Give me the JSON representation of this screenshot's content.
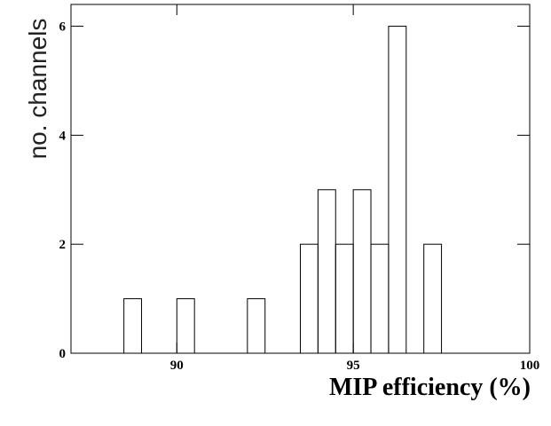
{
  "chart_data": {
    "type": "histogram",
    "x_label": "MIP efficiency (%)",
    "y_label": "no. channels",
    "bins": [
      87,
      87.5,
      88,
      88.5,
      89,
      89.5,
      90,
      90.5,
      91,
      91.5,
      92,
      92.5,
      93,
      93.5,
      94,
      94.5,
      95,
      95.5,
      96,
      96.5,
      97,
      97.5,
      98,
      98.5,
      99,
      99.5,
      100
    ],
    "values": [
      0,
      0,
      0,
      1,
      0,
      0,
      1,
      0,
      0,
      0,
      1,
      0,
      0,
      2,
      3,
      2,
      3,
      2,
      6,
      0,
      2,
      0,
      0,
      0,
      0,
      0
    ],
    "color": "#000000",
    "xlim": [
      87,
      100
    ],
    "xticks": [
      90,
      95,
      100
    ],
    "ylim": [
      0,
      6.4
    ],
    "yticks": [
      0,
      2,
      4,
      6
    ]
  }
}
